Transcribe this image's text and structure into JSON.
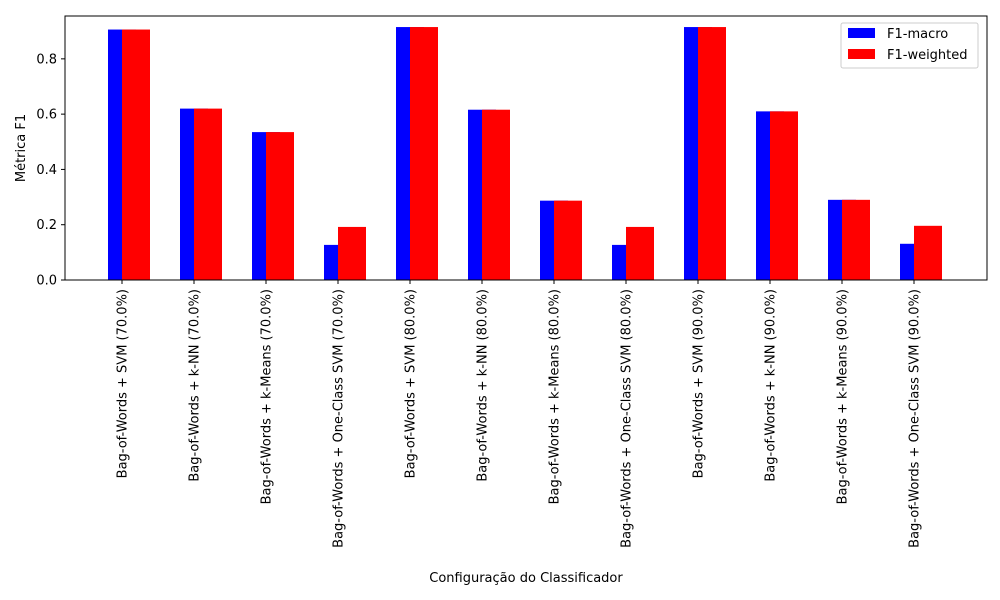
{
  "chart_data": {
    "type": "bar",
    "title": "",
    "xlabel": "Configuração do Classificador",
    "ylabel": "Métrica F1",
    "ylim": [
      0,
      0.955
    ],
    "yticks": [
      0.0,
      0.2,
      0.4,
      0.6,
      0.8
    ],
    "grid": false,
    "legend_position": "top-right",
    "categories": [
      "Bag-of-Words + SVM (70.0%)",
      "Bag-of-Words + k-NN (70.0%)",
      "Bag-of-Words + k-Means (70.0%)",
      "Bag-of-Words + One-Class SVM (70.0%)",
      "Bag-of-Words + SVM (80.0%)",
      "Bag-of-Words + k-NN (80.0%)",
      "Bag-of-Words + k-Means (80.0%)",
      "Bag-of-Words + One-Class SVM (80.0%)",
      "Bag-of-Words + SVM (90.0%)",
      "Bag-of-Words + k-NN (90.0%)",
      "Bag-of-Words + k-Means (90.0%)",
      "Bag-of-Words + One-Class SVM (90.0%)"
    ],
    "series": [
      {
        "name": "F1-macro",
        "color": "#0000ff",
        "values": [
          0.906,
          0.62,
          0.535,
          0.127,
          0.915,
          0.616,
          0.287,
          0.127,
          0.915,
          0.61,
          0.29,
          0.131
        ]
      },
      {
        "name": "F1-weighted",
        "color": "#ff0000",
        "values": [
          0.906,
          0.62,
          0.535,
          0.192,
          0.915,
          0.616,
          0.287,
          0.192,
          0.915,
          0.61,
          0.29,
          0.196
        ]
      }
    ]
  }
}
